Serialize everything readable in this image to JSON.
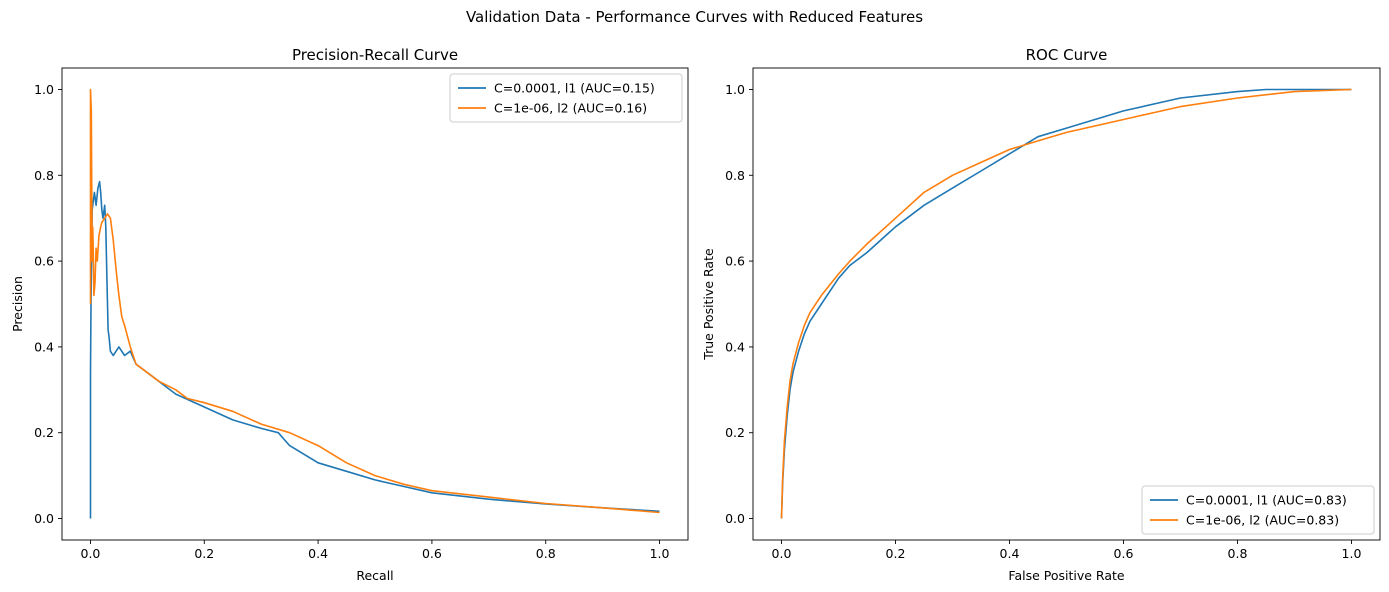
{
  "figure": {
    "suptitle": "Validation Data - Performance Curves with Reduced Features"
  },
  "colors": {
    "series1": "#1f77b4",
    "series2": "#ff7f0e"
  },
  "chart_data": [
    {
      "type": "line",
      "title": "Precision-Recall Curve",
      "xlabel": "Recall",
      "ylabel": "Precision",
      "xlim": [
        -0.05,
        1.05
      ],
      "ylim": [
        -0.05,
        1.05
      ],
      "xticks": [
        "0.0",
        "0.2",
        "0.4",
        "0.6",
        "0.8",
        "1.0"
      ],
      "yticks": [
        "0.0",
        "0.2",
        "0.4",
        "0.6",
        "0.8",
        "1.0"
      ],
      "grid": false,
      "legend_position": "upper right",
      "series": [
        {
          "name": "C=0.0001, l1 (AUC=0.15)",
          "color": "#1f77b4",
          "x": [
            0,
            0,
            0.001,
            0.003,
            0.005,
            0.007,
            0.01,
            0.013,
            0.016,
            0.018,
            0.02,
            0.022,
            0.025,
            0.027,
            0.029,
            0.031,
            0.033,
            0.035,
            0.04,
            0.05,
            0.06,
            0.07,
            0.08,
            0.1,
            0.12,
            0.15,
            0.2,
            0.25,
            0.3,
            0.33,
            0.35,
            0.4,
            0.45,
            0.5,
            0.55,
            0.6,
            0.7,
            0.8,
            0.9,
            1.0
          ],
          "y": [
            0.0,
            0.34,
            0.5,
            0.72,
            0.74,
            0.76,
            0.73,
            0.77,
            0.785,
            0.76,
            0.72,
            0.7,
            0.73,
            0.68,
            0.55,
            0.44,
            0.42,
            0.39,
            0.38,
            0.4,
            0.38,
            0.39,
            0.36,
            0.34,
            0.32,
            0.29,
            0.26,
            0.23,
            0.21,
            0.2,
            0.17,
            0.13,
            0.11,
            0.09,
            0.075,
            0.06,
            0.045,
            0.034,
            0.025,
            0.017
          ]
        },
        {
          "name": "C=1e-06, l2 (AUC=0.16)",
          "color": "#ff7f0e",
          "x": [
            0,
            0,
            0.0015,
            0.003,
            0.004,
            0.005,
            0.006,
            0.008,
            0.01,
            0.012,
            0.015,
            0.018,
            0.02,
            0.025,
            0.03,
            0.035,
            0.04,
            0.045,
            0.05,
            0.055,
            0.06,
            0.07,
            0.08,
            0.1,
            0.12,
            0.15,
            0.17,
            0.2,
            0.25,
            0.3,
            0.35,
            0.4,
            0.45,
            0.5,
            0.55,
            0.6,
            0.7,
            0.8,
            0.9,
            1.0
          ],
          "y": [
            0.5,
            1.0,
            0.95,
            0.6,
            0.68,
            0.62,
            0.52,
            0.55,
            0.63,
            0.6,
            0.66,
            0.68,
            0.69,
            0.7,
            0.71,
            0.7,
            0.65,
            0.58,
            0.52,
            0.47,
            0.45,
            0.4,
            0.36,
            0.34,
            0.32,
            0.3,
            0.28,
            0.27,
            0.25,
            0.22,
            0.2,
            0.17,
            0.13,
            0.1,
            0.08,
            0.065,
            0.05,
            0.035,
            0.025,
            0.014
          ]
        }
      ]
    },
    {
      "type": "line",
      "title": "ROC Curve",
      "xlabel": "False Positive Rate",
      "ylabel": "True Positive Rate",
      "xlim": [
        -0.05,
        1.05
      ],
      "ylim": [
        -0.05,
        1.05
      ],
      "xticks": [
        "0.0",
        "0.2",
        "0.4",
        "0.6",
        "0.8",
        "1.0"
      ],
      "yticks": [
        "0.0",
        "0.2",
        "0.4",
        "0.6",
        "0.8",
        "1.0"
      ],
      "grid": false,
      "legend_position": "lower right",
      "series": [
        {
          "name": "C=0.0001, l1 (AUC=0.83)",
          "color": "#1f77b4",
          "x": [
            0,
            0.002,
            0.005,
            0.01,
            0.015,
            0.02,
            0.03,
            0.04,
            0.05,
            0.07,
            0.1,
            0.12,
            0.15,
            0.2,
            0.25,
            0.3,
            0.35,
            0.4,
            0.45,
            0.5,
            0.6,
            0.7,
            0.8,
            0.85,
            0.9,
            1.0
          ],
          "y": [
            0,
            0.08,
            0.16,
            0.24,
            0.3,
            0.34,
            0.39,
            0.43,
            0.46,
            0.5,
            0.56,
            0.59,
            0.62,
            0.68,
            0.73,
            0.77,
            0.81,
            0.85,
            0.89,
            0.91,
            0.95,
            0.98,
            0.995,
            1.0,
            1.0,
            1.0
          ]
        },
        {
          "name": "C=1e-06, l2 (AUC=0.83)",
          "color": "#ff7f0e",
          "x": [
            0,
            0.002,
            0.005,
            0.01,
            0.015,
            0.02,
            0.03,
            0.04,
            0.05,
            0.07,
            0.1,
            0.12,
            0.15,
            0.2,
            0.25,
            0.3,
            0.35,
            0.4,
            0.45,
            0.5,
            0.6,
            0.7,
            0.8,
            0.9,
            1.0
          ],
          "y": [
            0,
            0.09,
            0.18,
            0.26,
            0.32,
            0.36,
            0.41,
            0.45,
            0.48,
            0.52,
            0.57,
            0.6,
            0.64,
            0.7,
            0.76,
            0.8,
            0.83,
            0.86,
            0.88,
            0.9,
            0.93,
            0.96,
            0.98,
            0.995,
            1.0
          ]
        }
      ]
    }
  ]
}
